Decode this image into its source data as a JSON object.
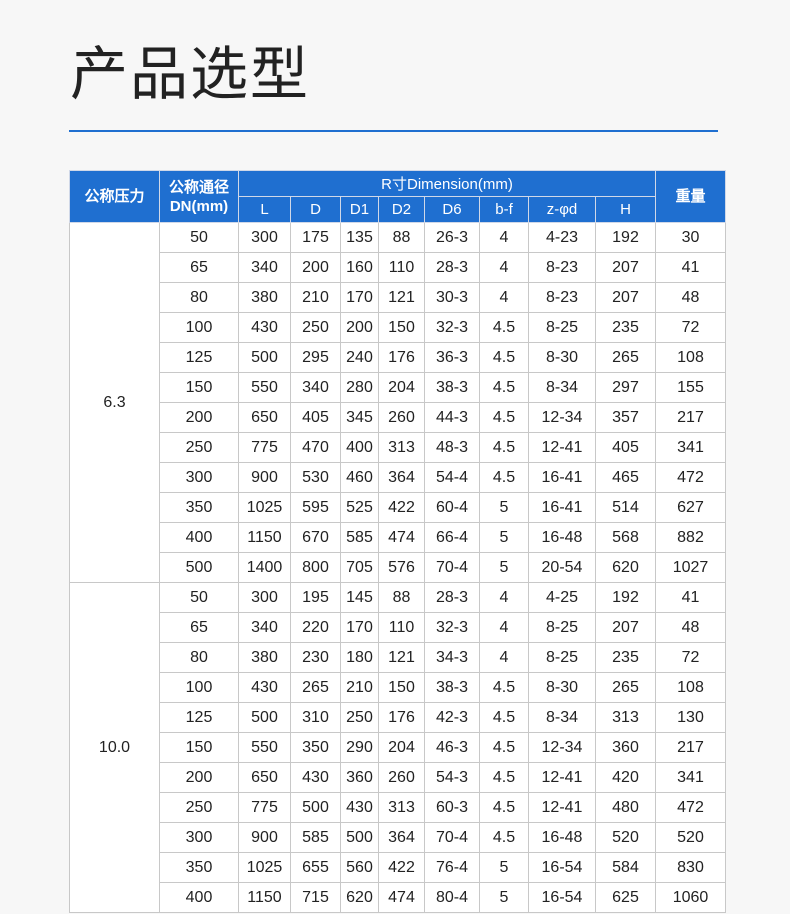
{
  "title": "产品选型",
  "accent": "#1f6fd0",
  "table": {
    "headers": {
      "pressure": "公称压力",
      "dn": "公称通径DN(mm)",
      "dimension": "R寸Dimension(mm)",
      "weight": "重量",
      "sub": [
        "L",
        "D",
        "D1",
        "D2",
        "D6",
        "b-f",
        "z-φd",
        "H"
      ]
    },
    "groups": [
      {
        "pressure": "6.3",
        "rows": [
          [
            "50",
            "300",
            "175",
            "135",
            "88",
            "26-3",
            "4",
            "4-23",
            "192",
            "30"
          ],
          [
            "65",
            "340",
            "200",
            "160",
            "110",
            "28-3",
            "4",
            "8-23",
            "207",
            "41"
          ],
          [
            "80",
            "380",
            "210",
            "170",
            "121",
            "30-3",
            "4",
            "8-23",
            "207",
            "48"
          ],
          [
            "100",
            "430",
            "250",
            "200",
            "150",
            "32-3",
            "4.5",
            "8-25",
            "235",
            "72"
          ],
          [
            "125",
            "500",
            "295",
            "240",
            "176",
            "36-3",
            "4.5",
            "8-30",
            "265",
            "108"
          ],
          [
            "150",
            "550",
            "340",
            "280",
            "204",
            "38-3",
            "4.5",
            "8-34",
            "297",
            "155"
          ],
          [
            "200",
            "650",
            "405",
            "345",
            "260",
            "44-3",
            "4.5",
            "12-34",
            "357",
            "217"
          ],
          [
            "250",
            "775",
            "470",
            "400",
            "313",
            "48-3",
            "4.5",
            "12-41",
            "405",
            "341"
          ],
          [
            "300",
            "900",
            "530",
            "460",
            "364",
            "54-4",
            "4.5",
            "16-41",
            "465",
            "472"
          ],
          [
            "350",
            "1025",
            "595",
            "525",
            "422",
            "60-4",
            "5",
            "16-41",
            "514",
            "627"
          ],
          [
            "400",
            "1150",
            "670",
            "585",
            "474",
            "66-4",
            "5",
            "16-48",
            "568",
            "882"
          ],
          [
            "500",
            "1400",
            "800",
            "705",
            "576",
            "70-4",
            "5",
            "20-54",
            "620",
            "1027"
          ]
        ]
      },
      {
        "pressure": "10.0",
        "rows": [
          [
            "50",
            "300",
            "195",
            "145",
            "88",
            "28-3",
            "4",
            "4-25",
            "192",
            "41"
          ],
          [
            "65",
            "340",
            "220",
            "170",
            "110",
            "32-3",
            "4",
            "8-25",
            "207",
            "48"
          ],
          [
            "80",
            "380",
            "230",
            "180",
            "121",
            "34-3",
            "4",
            "8-25",
            "235",
            "72"
          ],
          [
            "100",
            "430",
            "265",
            "210",
            "150",
            "38-3",
            "4.5",
            "8-30",
            "265",
            "108"
          ],
          [
            "125",
            "500",
            "310",
            "250",
            "176",
            "42-3",
            "4.5",
            "8-34",
            "313",
            "130"
          ],
          [
            "150",
            "550",
            "350",
            "290",
            "204",
            "46-3",
            "4.5",
            "12-34",
            "360",
            "217"
          ],
          [
            "200",
            "650",
            "430",
            "360",
            "260",
            "54-3",
            "4.5",
            "12-41",
            "420",
            "341"
          ],
          [
            "250",
            "775",
            "500",
            "430",
            "313",
            "60-3",
            "4.5",
            "12-41",
            "480",
            "472"
          ],
          [
            "300",
            "900",
            "585",
            "500",
            "364",
            "70-4",
            "4.5",
            "16-48",
            "520",
            "520"
          ],
          [
            "350",
            "1025",
            "655",
            "560",
            "422",
            "76-4",
            "5",
            "16-54",
            "584",
            "830"
          ],
          [
            "400",
            "1150",
            "715",
            "620",
            "474",
            "80-4",
            "5",
            "16-54",
            "625",
            "1060"
          ]
        ]
      }
    ]
  }
}
